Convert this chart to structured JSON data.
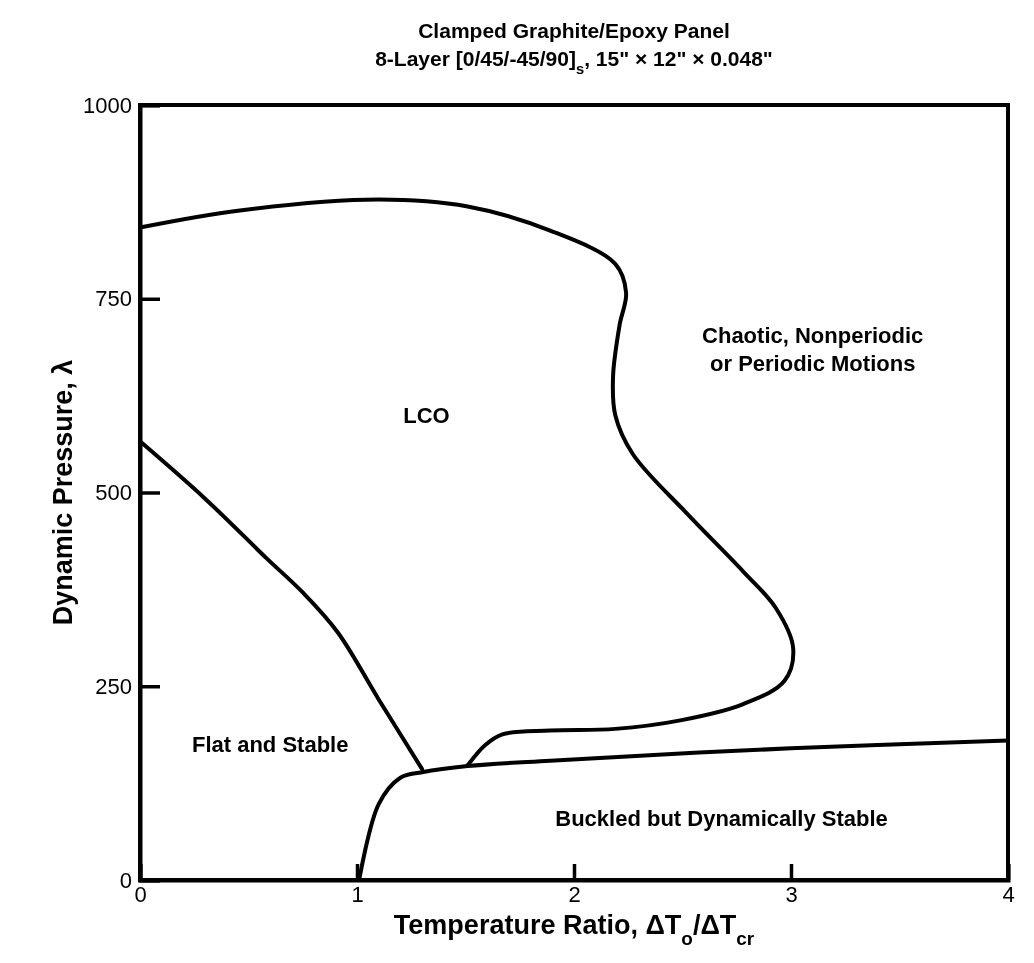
{
  "chart_data": {
    "type": "line",
    "title": "Clamped Graphite/Epoxy Panel",
    "subtitle": "8-Layer [0/45/-45/90]$_{s}$, 15\" × 12\" × 0.048\"",
    "xlabel": "Temperature Ratio, ΔT$_{o}$/ΔT$_{cr}$",
    "ylabel": "Dynamic Pressure, λ",
    "xlim": [
      0,
      4
    ],
    "ylim": [
      0,
      1000
    ],
    "xticks": [
      0,
      1,
      2,
      3,
      4
    ],
    "yticks": [
      0,
      250,
      500,
      750,
      1000
    ],
    "grid": false,
    "marker": "none",
    "line_style": "solid",
    "series": [
      {
        "color": "#000000",
        "x": [
          0,
          0.3,
          0.58,
          0.75,
          0.91,
          1.1,
          1.3
        ],
        "values": [
          566,
          492,
          416,
          371,
          320,
          233,
          143
        ]
      },
      {
        "color": "#000000",
        "x": [
          1.01,
          1.1,
          1.2,
          1.3,
          1.51,
          1.89,
          3,
          4
        ],
        "values": [
          0,
          98,
          132,
          139,
          147,
          154,
          170,
          180
        ]
      },
      {
        "color": "#000000",
        "x": [
          0,
          0.46,
          1.1,
          1.51,
          1.89,
          2.19,
          2.24,
          2.21,
          2.18,
          2.19,
          2.27,
          2.52,
          2.78,
          2.93,
          3.01,
          2.97,
          2.78,
          2.49,
          2.19,
          1.89,
          1.67,
          1.59,
          1.51
        ],
        "values": [
          842,
          864,
          878,
          869,
          838,
          795,
          758,
          716,
          650,
          600,
          550,
          473,
          398,
          351,
          299,
          257,
          227,
          206,
          195,
          193,
          188,
          174,
          148
        ]
      }
    ],
    "annotations": [
      "LCO",
      "Chaotic, Nonperiodic\nor Periodic Motions",
      "Flat and Stable",
      "Buckled but Dynamically Stable"
    ]
  }
}
